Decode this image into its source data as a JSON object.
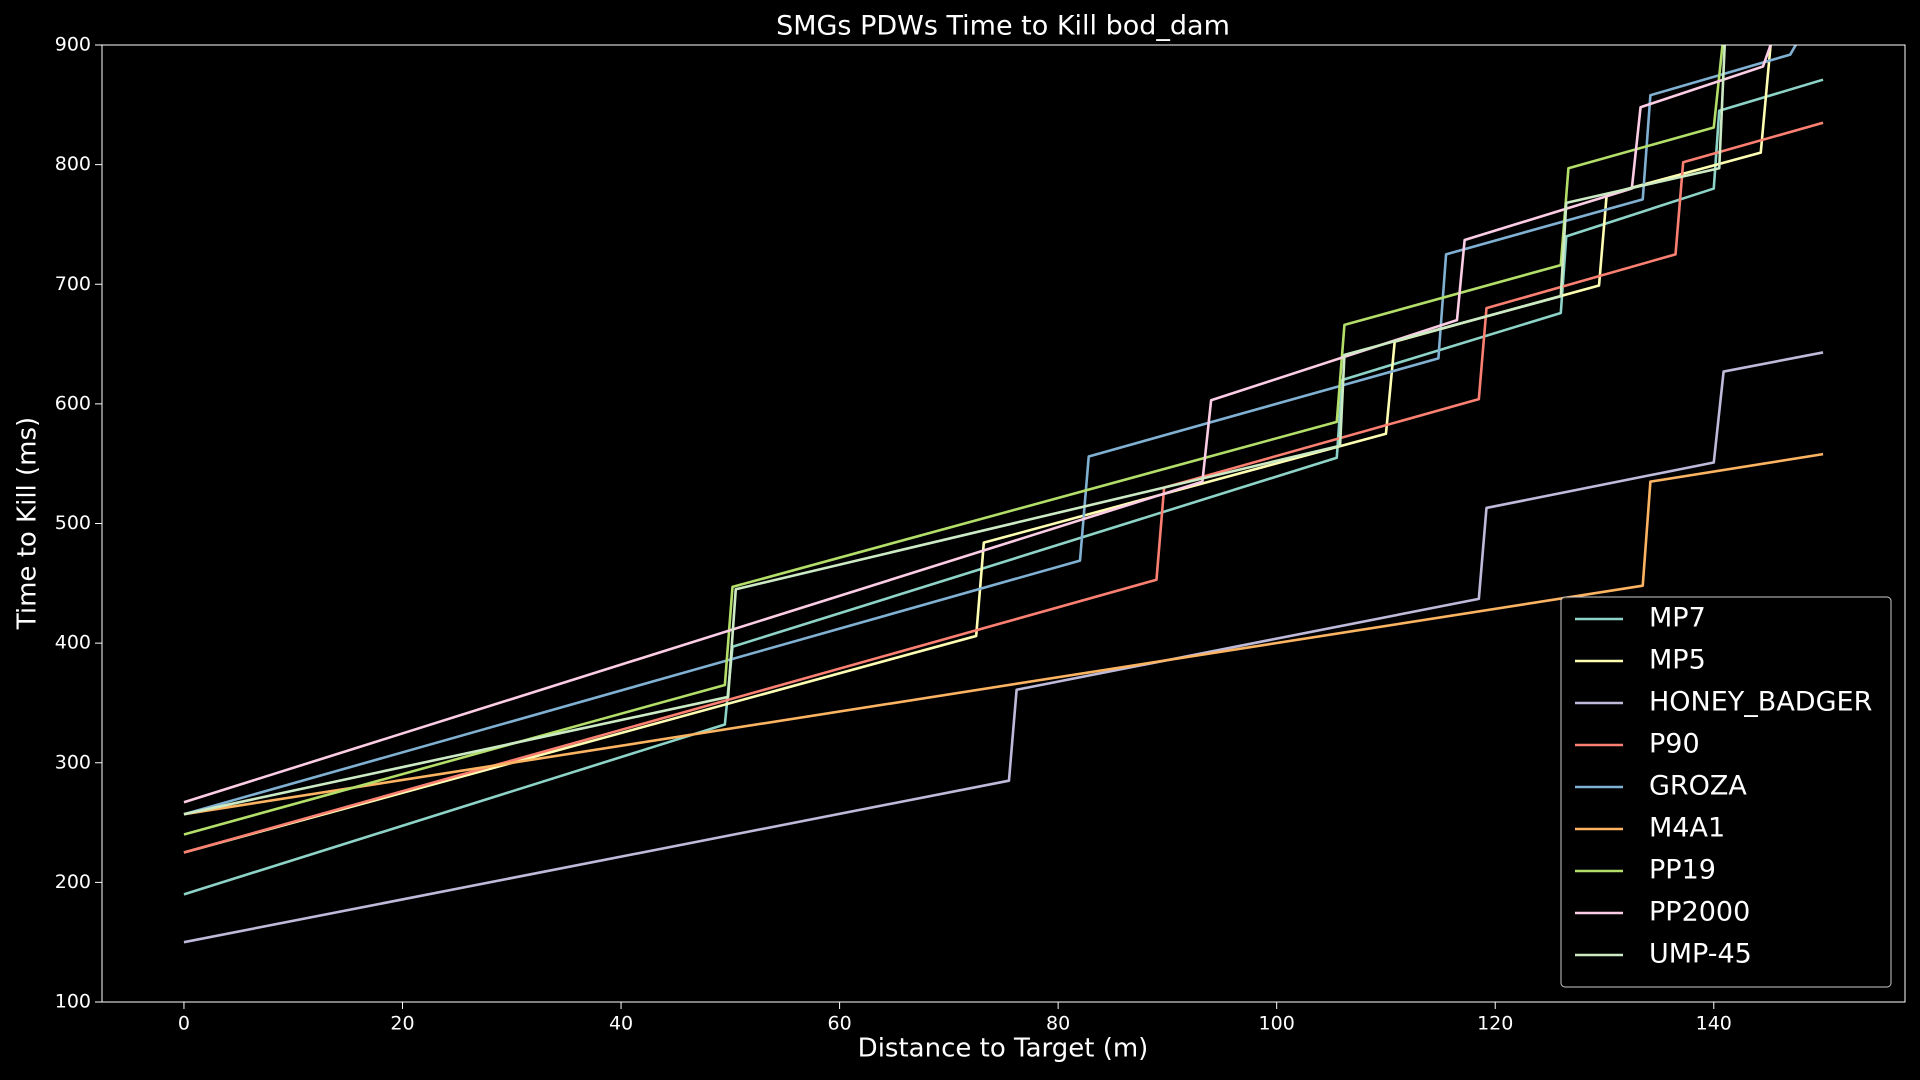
{
  "chart_data": {
    "type": "line",
    "title": "SMGs PDWs Time to Kill bod_dam",
    "x_label": "Distance to Target (m)",
    "y_label": "Time to Kill (ms)",
    "xlim": [
      -7.5,
      157.5
    ],
    "xticks": [
      0,
      20,
      40,
      60,
      80,
      100,
      120,
      140
    ],
    "ylim": [
      100,
      900
    ],
    "yticks": [
      100,
      200,
      300,
      400,
      500,
      600,
      700,
      800,
      900
    ],
    "grid": false,
    "legend": "lower right",
    "series": [
      {
        "name": "MP7",
        "color": "#8dd3c7",
        "x": [
          0,
          49.5,
          50.2,
          105.5,
          106,
          126,
          126.5,
          140,
          140.5,
          150
        ],
        "values": [
          190,
          332,
          397,
          555,
          620,
          676,
          740,
          780,
          845,
          871
        ]
      },
      {
        "name": "MP5",
        "color": "#ffffb3",
        "x": [
          0,
          72.5,
          73.2,
          110,
          110.8,
          129.5,
          130.2,
          144.3,
          145.2
        ],
        "values": [
          225,
          406,
          484,
          575,
          652,
          699,
          775,
          810,
          900
        ]
      },
      {
        "name": "HONEY_BADGER",
        "color": "#bebada",
        "x": [
          0,
          75.5,
          76.2,
          118.5,
          119.2,
          140,
          140.9,
          150
        ],
        "values": [
          150,
          285,
          361,
          437,
          513,
          551,
          627,
          643
        ]
      },
      {
        "name": "P90",
        "color": "#fb8072",
        "x": [
          0,
          89,
          89.7,
          118.5,
          119.2,
          136.5,
          137.2,
          150
        ],
        "values": [
          225,
          453,
          530,
          604,
          680,
          725,
          802,
          835
        ]
      },
      {
        "name": "GROZA",
        "color": "#80b1d3",
        "x": [
          0,
          82,
          82.8,
          114.8,
          115.5,
          133.5,
          134.2,
          147,
          147.5
        ],
        "values": [
          257,
          469,
          556,
          638,
          725,
          771,
          858,
          892,
          900
        ]
      },
      {
        "name": "M4A1",
        "color": "#fdb462",
        "x": [
          0,
          133.5,
          134.2,
          150
        ],
        "values": [
          257,
          448,
          535,
          558
        ]
      },
      {
        "name": "PP19",
        "color": "#b3de69",
        "x": [
          0,
          49.5,
          50.2,
          105.5,
          106.2,
          126,
          126.7,
          140,
          140.8
        ],
        "values": [
          240,
          365,
          447,
          585,
          666,
          716,
          797,
          831,
          900
        ]
      },
      {
        "name": "PP2000",
        "color": "#fccde5",
        "x": [
          0,
          93.2,
          94,
          116.5,
          117.2,
          132.5,
          133.3,
          144.5,
          145.2
        ],
        "values": [
          267,
          535,
          603,
          670,
          737,
          780,
          848,
          882,
          900
        ]
      },
      {
        "name": "UMP-45",
        "color": "#ccebc5",
        "x": [
          0,
          49.8,
          50.5,
          105.8,
          106.2,
          126,
          126.5,
          140.5,
          141
        ],
        "values": [
          257,
          355,
          445,
          565,
          641,
          690,
          768,
          797,
          900
        ]
      }
    ]
  }
}
